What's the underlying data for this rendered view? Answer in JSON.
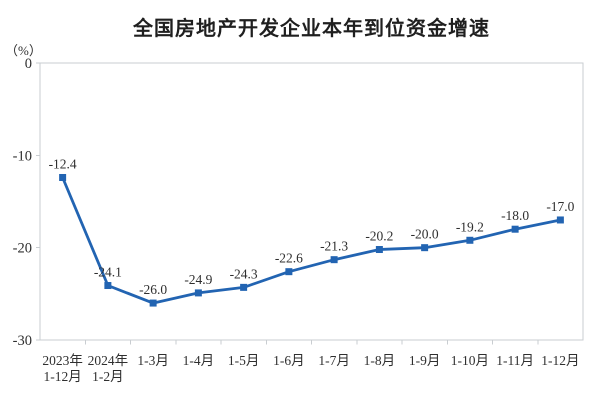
{
  "page": {
    "background": "#ffffff"
  },
  "chart_data": {
    "type": "line",
    "title": "全国房地产开发企业本年到位资金增速",
    "ylabel": "（%）",
    "xlabel": "",
    "categories": [
      [
        "2023年",
        "1-12月"
      ],
      [
        "2024年",
        "1-2月"
      ],
      [
        "1-3月"
      ],
      [
        "1-4月"
      ],
      [
        "1-5月"
      ],
      [
        "1-6月"
      ],
      [
        "1-7月"
      ],
      [
        "1-8月"
      ],
      [
        "1-9月"
      ],
      [
        "1-10月"
      ],
      [
        "1-11月"
      ],
      [
        "1-12月"
      ]
    ],
    "series": [
      {
        "name": "本年到位资金增速",
        "values": [
          -12.4,
          -24.1,
          -26.0,
          -24.9,
          -24.3,
          -22.6,
          -21.3,
          -20.2,
          -20.0,
          -19.2,
          -18.0,
          -17.0
        ],
        "labels": [
          "-12.4",
          "-24.1",
          "-26.0",
          "-24.9",
          "-24.3",
          "-22.6",
          "-21.3",
          "-20.2",
          "-20.0",
          "-19.2",
          "-18.0",
          "-17.0"
        ]
      }
    ],
    "ylim": [
      -30,
      0
    ],
    "yticks": [
      0,
      -10,
      -20,
      -30
    ],
    "grid": false,
    "legend": "none",
    "marker": "square",
    "label_position": "above",
    "colors": {
      "line": "#2264b2",
      "marker": "#2264b2",
      "axis": "#c9cdd1",
      "tick_text": "#2f2f2f",
      "data_label_text": "#2f2f2f",
      "title_text": "#1f1f1f"
    }
  }
}
